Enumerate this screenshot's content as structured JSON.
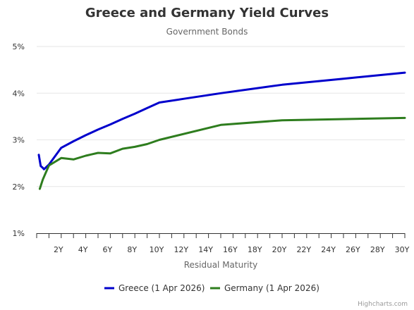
{
  "chart_data": {
    "type": "line",
    "title": "Greece and Germany Yield Curves",
    "subtitle": "Government Bonds",
    "xlabel": "Residual Maturity",
    "ylabel": "",
    "xlim": [
      0,
      30
    ],
    "ylim": [
      1,
      5
    ],
    "x_ticks": [
      {
        "value": 2,
        "label": "2Y"
      },
      {
        "value": 4,
        "label": "4Y"
      },
      {
        "value": 6,
        "label": "6Y"
      },
      {
        "value": 8,
        "label": "8Y"
      },
      {
        "value": 10,
        "label": "10Y"
      },
      {
        "value": 12,
        "label": "12Y"
      },
      {
        "value": 14,
        "label": "14Y"
      },
      {
        "value": 16,
        "label": "16Y"
      },
      {
        "value": 18,
        "label": "18Y"
      },
      {
        "value": 20,
        "label": "20Y"
      },
      {
        "value": 22,
        "label": "22Y"
      },
      {
        "value": 24,
        "label": "24Y"
      },
      {
        "value": 26,
        "label": "26Y"
      },
      {
        "value": 28,
        "label": "28Y"
      },
      {
        "value": 30,
        "label": "30Y"
      }
    ],
    "y_ticks": [
      {
        "value": 1,
        "label": "1%"
      },
      {
        "value": 2,
        "label": "2%"
      },
      {
        "value": 3,
        "label": "3%"
      },
      {
        "value": 4,
        "label": "4%"
      },
      {
        "value": 5,
        "label": "5%"
      }
    ],
    "grid": true,
    "legend_position": "bottom",
    "series": [
      {
        "name": "Greece (1 Apr 2026)",
        "color": "#0000cc",
        "points": [
          [
            0.17,
            2.68
          ],
          [
            0.33,
            2.44
          ],
          [
            0.5,
            2.4
          ],
          [
            0.6,
            2.37
          ],
          [
            1,
            2.47
          ],
          [
            2,
            2.83
          ],
          [
            3,
            2.97
          ],
          [
            4,
            3.1
          ],
          [
            5,
            3.22
          ],
          [
            6,
            3.33
          ],
          [
            7,
            3.45
          ],
          [
            8,
            3.56
          ],
          [
            9,
            3.68
          ],
          [
            10,
            3.8
          ],
          [
            12,
            3.88
          ],
          [
            15,
            4.0
          ],
          [
            20,
            4.18
          ],
          [
            25,
            4.31
          ],
          [
            30,
            4.44
          ]
        ]
      },
      {
        "name": "Germany (1 Apr 2026)",
        "color": "#2e7d1e",
        "points": [
          [
            0.25,
            1.95
          ],
          [
            0.5,
            2.15
          ],
          [
            0.75,
            2.3
          ],
          [
            1,
            2.45
          ],
          [
            2,
            2.61
          ],
          [
            3,
            2.58
          ],
          [
            4,
            2.66
          ],
          [
            5,
            2.72
          ],
          [
            6,
            2.71
          ],
          [
            7,
            2.81
          ],
          [
            8,
            2.85
          ],
          [
            9,
            2.91
          ],
          [
            10,
            3.0
          ],
          [
            15,
            3.32
          ],
          [
            20,
            3.42
          ],
          [
            30,
            3.47
          ]
        ]
      }
    ]
  },
  "credit": "Highcharts.com"
}
